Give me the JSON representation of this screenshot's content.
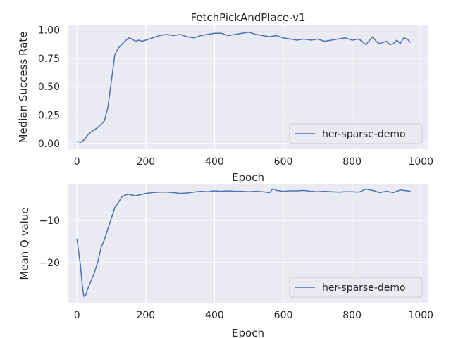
{
  "chart_data": [
    {
      "type": "line",
      "title": "FetchPickAndPlace-v1",
      "xlabel": "Epoch",
      "ylabel": "Median Success Rate",
      "xlim": [
        -25,
        1020
      ],
      "ylim": [
        -0.05,
        1.04
      ],
      "xticks": [
        0,
        200,
        400,
        600,
        800,
        1000
      ],
      "yticks": [
        0.0,
        0.25,
        0.5,
        0.75,
        1.0
      ],
      "xtick_labels": [
        "0",
        "200",
        "400",
        "600",
        "800",
        "1000"
      ],
      "ytick_labels": [
        "0.00",
        "0.25",
        "0.50",
        "0.75",
        "1.00"
      ],
      "grid": true,
      "legend": "lower-right",
      "series": [
        {
          "name": "her-sparse-demo",
          "color": "#4c72b0",
          "x": [
            0,
            10,
            20,
            30,
            40,
            50,
            60,
            70,
            80,
            90,
            100,
            110,
            120,
            130,
            140,
            150,
            160,
            170,
            180,
            190,
            200,
            220,
            240,
            260,
            280,
            300,
            320,
            340,
            360,
            380,
            400,
            420,
            440,
            460,
            480,
            500,
            520,
            540,
            560,
            580,
            600,
            620,
            640,
            660,
            680,
            700,
            720,
            740,
            760,
            780,
            800,
            820,
            840,
            860,
            870,
            880,
            900,
            910,
            920,
            930,
            940,
            950,
            960,
            970
          ],
          "y": [
            0.02,
            0.01,
            0.03,
            0.07,
            0.1,
            0.12,
            0.14,
            0.17,
            0.2,
            0.32,
            0.55,
            0.78,
            0.84,
            0.87,
            0.9,
            0.93,
            0.92,
            0.9,
            0.91,
            0.9,
            0.91,
            0.93,
            0.95,
            0.96,
            0.95,
            0.96,
            0.94,
            0.93,
            0.95,
            0.96,
            0.97,
            0.97,
            0.95,
            0.96,
            0.97,
            0.98,
            0.96,
            0.95,
            0.94,
            0.95,
            0.93,
            0.92,
            0.91,
            0.92,
            0.91,
            0.92,
            0.9,
            0.91,
            0.92,
            0.93,
            0.91,
            0.92,
            0.87,
            0.94,
            0.9,
            0.88,
            0.9,
            0.87,
            0.88,
            0.91,
            0.88,
            0.93,
            0.92,
            0.89
          ]
        }
      ]
    },
    {
      "type": "line",
      "title": "",
      "xlabel": "Epoch",
      "ylabel": "Mean Q value",
      "xlim": [
        -25,
        1020
      ],
      "ylim": [
        -29.5,
        -1.5
      ],
      "xticks": [
        0,
        200,
        400,
        600,
        800,
        1000
      ],
      "yticks": [
        -10,
        -20
      ],
      "xtick_labels": [
        "0",
        "200",
        "400",
        "600",
        "800",
        "1000"
      ],
      "ytick_labels": [
        "−10",
        "−20"
      ],
      "grid": true,
      "legend": "lower-right",
      "series": [
        {
          "name": "her-sparse-demo",
          "color": "#4c72b0",
          "x": [
            0,
            5,
            10,
            15,
            20,
            25,
            30,
            40,
            50,
            60,
            70,
            80,
            90,
            100,
            110,
            120,
            130,
            140,
            150,
            160,
            170,
            180,
            200,
            220,
            240,
            260,
            280,
            300,
            320,
            340,
            360,
            380,
            400,
            420,
            440,
            460,
            480,
            500,
            520,
            540,
            560,
            570,
            580,
            600,
            620,
            640,
            660,
            680,
            700,
            720,
            740,
            760,
            780,
            800,
            820,
            840,
            860,
            880,
            900,
            920,
            940,
            960,
            970
          ],
          "y": [
            -14.3,
            -17.5,
            -20.5,
            -25,
            -28,
            -27.8,
            -26.5,
            -24.5,
            -22.5,
            -20,
            -16.5,
            -14.5,
            -12,
            -9.5,
            -7,
            -5.8,
            -4.5,
            -4,
            -3.8,
            -4,
            -4.2,
            -4,
            -3.6,
            -3.4,
            -3.3,
            -3.3,
            -3.4,
            -3.6,
            -3.5,
            -3.3,
            -3.1,
            -3.2,
            -3,
            -3.1,
            -3,
            -3.1,
            -3.1,
            -3.2,
            -3.1,
            -3.2,
            -3.4,
            -2.5,
            -2.9,
            -3.1,
            -3,
            -3,
            -2.9,
            -3.1,
            -3.2,
            -3.1,
            -3.2,
            -3.3,
            -3.2,
            -3.2,
            -3.3,
            -2.6,
            -2.9,
            -3.4,
            -3.1,
            -3.4,
            -2.8,
            -3,
            -3.1
          ]
        }
      ]
    }
  ]
}
